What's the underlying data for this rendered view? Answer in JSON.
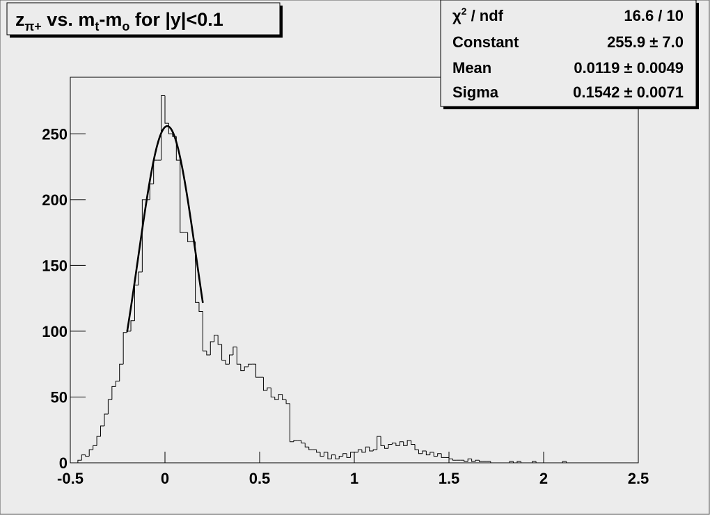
{
  "chart_data": {
    "type": "histogram",
    "title_parts": [
      {
        "text": "z"
      },
      {
        "text": "π+",
        "sub": true
      },
      {
        "text": " vs. m"
      },
      {
        "text": "t",
        "sub": true
      },
      {
        "text": "-m"
      },
      {
        "text": "o",
        "sub": true
      },
      {
        "text": " for |y|<0.1"
      }
    ],
    "bins": [
      -0.5,
      -0.48,
      -0.46,
      -0.44,
      -0.42,
      -0.4,
      -0.38,
      -0.36,
      -0.34,
      -0.32,
      -0.3,
      -0.28,
      -0.26,
      -0.24,
      -0.22,
      -0.2,
      -0.18,
      -0.16,
      -0.14,
      -0.12,
      -0.1,
      -0.08,
      -0.06,
      -0.04,
      -0.02,
      0,
      0.02,
      0.04,
      0.06,
      0.08,
      0.1,
      0.12,
      0.14,
      0.16,
      0.18,
      0.2,
      0.22,
      0.24,
      0.26,
      0.28,
      0.3,
      0.32,
      0.34,
      0.36,
      0.38,
      0.4,
      0.42,
      0.44,
      0.46,
      0.48,
      0.5,
      0.52,
      0.54,
      0.56,
      0.58,
      0.6,
      0.62,
      0.64,
      0.66,
      0.68,
      0.7,
      0.72,
      0.74,
      0.76,
      0.78,
      0.8,
      0.82,
      0.84,
      0.86,
      0.88,
      0.9,
      0.92,
      0.94,
      0.96,
      0.98,
      1,
      1.02,
      1.04,
      1.06,
      1.08,
      1.1,
      1.12,
      1.14,
      1.16,
      1.18,
      1.2,
      1.22,
      1.24,
      1.26,
      1.28,
      1.3,
      1.32,
      1.34,
      1.36,
      1.38,
      1.4,
      1.42,
      1.44,
      1.46,
      1.48,
      1.5,
      1.52,
      1.54,
      1.56,
      1.58,
      1.6,
      1.62,
      1.64,
      1.66,
      1.68,
      1.7,
      1.72,
      1.74,
      1.76,
      1.78,
      1.8,
      1.82,
      1.84,
      1.86,
      1.88,
      1.9,
      1.92,
      1.94,
      1.96,
      1.98,
      2,
      2.02,
      2.04,
      2.06,
      2.08,
      2.1,
      2.12,
      2.14,
      2.16,
      2.18,
      2.2,
      2.22,
      2.24,
      2.26,
      2.28,
      2.3,
      2.32,
      2.34,
      2.36,
      2.38,
      2.4,
      2.42,
      2.44,
      2.46,
      2.48,
      2.5
    ],
    "values": [
      0,
      0,
      2,
      6,
      5,
      10,
      13,
      20,
      28,
      37,
      48,
      58,
      62,
      75,
      99,
      100,
      108,
      135,
      145,
      200,
      200,
      212,
      230,
      230,
      279,
      258,
      250,
      248,
      230,
      175,
      175,
      168,
      168,
      122,
      115,
      85,
      82,
      92,
      97,
      90,
      78,
      75,
      82,
      88,
      75,
      70,
      73,
      75,
      75,
      65,
      65,
      55,
      57,
      50,
      48,
      52,
      48,
      45,
      16,
      17,
      17,
      15,
      12,
      10,
      10,
      8,
      5,
      8,
      3,
      6,
      3,
      5,
      7,
      4,
      8,
      8,
      10,
      8,
      12,
      9,
      10,
      20,
      13,
      11,
      14,
      15,
      13,
      16,
      13,
      17,
      14,
      10,
      7,
      9,
      6,
      8,
      5,
      7,
      4,
      4,
      3,
      2,
      2,
      2,
      1,
      3,
      1,
      2,
      1,
      1,
      1,
      0,
      0,
      0,
      0,
      0,
      1,
      0,
      1,
      0,
      0,
      0,
      1,
      0,
      0,
      0,
      0,
      0,
      0,
      0,
      1,
      0,
      0,
      0,
      0,
      0,
      0,
      0,
      0,
      0,
      0,
      0,
      0,
      0,
      0,
      0,
      0,
      0,
      0,
      0
    ],
    "color": "#000000",
    "fit": {
      "constant": 255.9,
      "mean": 0.0119,
      "sigma": 0.1542,
      "range": [
        -0.2,
        0.2
      ],
      "color": "#000000"
    },
    "xlim": [
      -0.5,
      2.5
    ],
    "xticks": [
      -0.5,
      0,
      0.5,
      1,
      1.5,
      2,
      2.5
    ],
    "ylim": [
      0,
      293
    ],
    "yticks": [
      0,
      50,
      100,
      150,
      200,
      250
    ],
    "stats": [
      {
        "label_parts": [
          {
            "text": "χ"
          },
          {
            "text": "2",
            "sup": true
          },
          {
            "text": " / ndf"
          }
        ],
        "value": "16.6 / 10"
      },
      {
        "label_parts": [
          {
            "text": "Constant"
          }
        ],
        "value": "255.9 ± 7.0"
      },
      {
        "label_parts": [
          {
            "text": "Mean"
          }
        ],
        "value": "0.0119 ± 0.0049"
      },
      {
        "label_parts": [
          {
            "text": "Sigma"
          }
        ],
        "value": "0.1542 ± 0.0071"
      }
    ]
  }
}
